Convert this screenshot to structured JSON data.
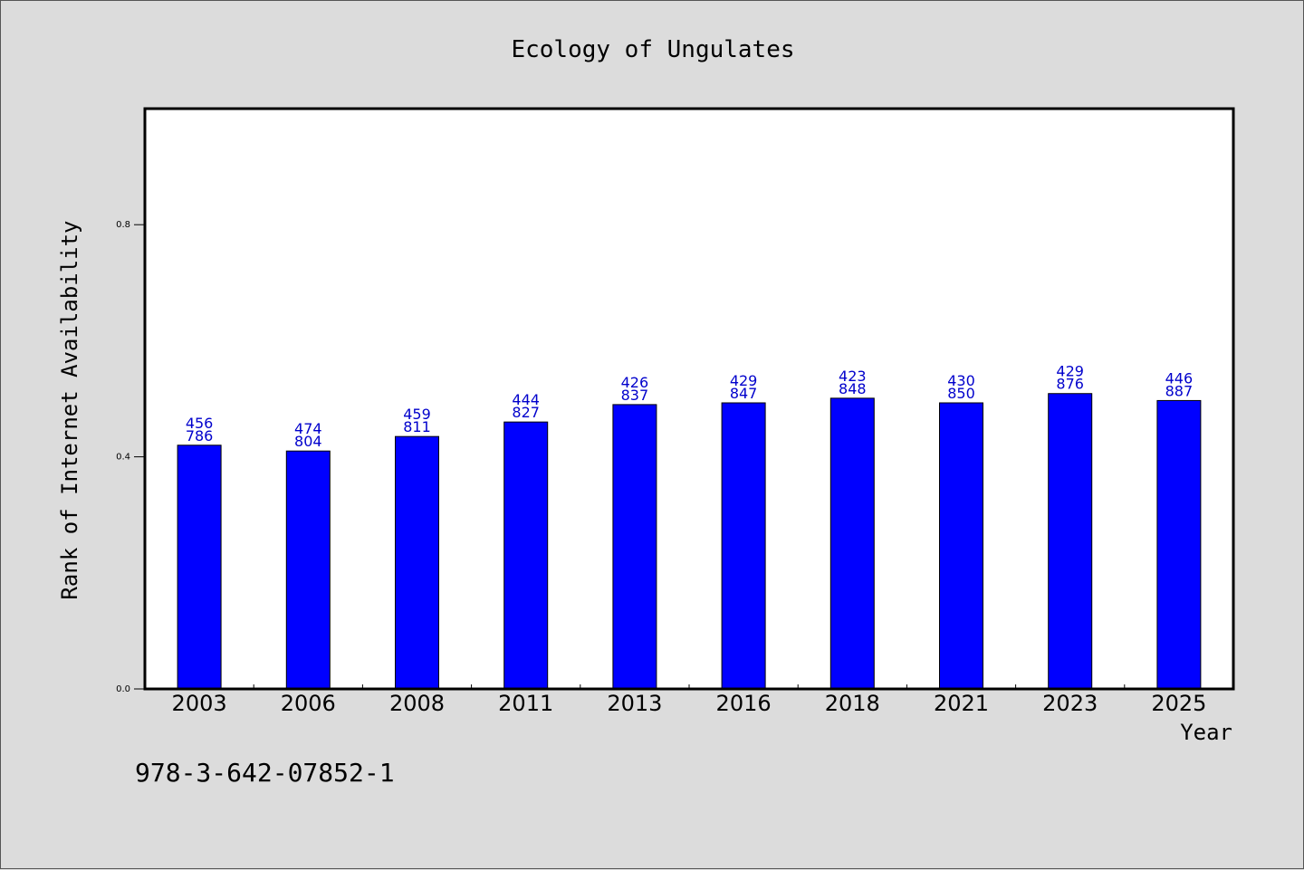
{
  "chart_data": {
    "type": "bar",
    "title": "Ecology of Ungulates",
    "xlabel": "Year",
    "ylabel": "Rank of Internet Availability",
    "categories": [
      "2003",
      "2006",
      "2008",
      "2011",
      "2013",
      "2016",
      "2018",
      "2021",
      "2023",
      "2025"
    ],
    "values": [
      0.42,
      0.41,
      0.435,
      0.46,
      0.49,
      0.493,
      0.501,
      0.493,
      0.509,
      0.497
    ],
    "data_labels": [
      [
        "456",
        "786"
      ],
      [
        "474",
        "804"
      ],
      [
        "459",
        "811"
      ],
      [
        "444",
        "827"
      ],
      [
        "426",
        "837"
      ],
      [
        "429",
        "847"
      ],
      [
        "423",
        "848"
      ],
      [
        "430",
        "850"
      ],
      [
        "429",
        "876"
      ],
      [
        "446",
        "887"
      ]
    ],
    "ylim": [
      0.0,
      1.0
    ],
    "yticks": [
      0.0,
      0.4,
      0.8
    ],
    "ytick_labels": [
      "0.0",
      "0.4",
      "0.8"
    ],
    "grid": false,
    "legend": "none"
  },
  "colors": {
    "bar_fill": "#0000ff",
    "bar_stroke": "#000000",
    "data_label": "#0000cc",
    "plot_background": "#ffffff",
    "page_background": "#dcdcdc"
  },
  "footnote": "978-3-642-07852-1"
}
